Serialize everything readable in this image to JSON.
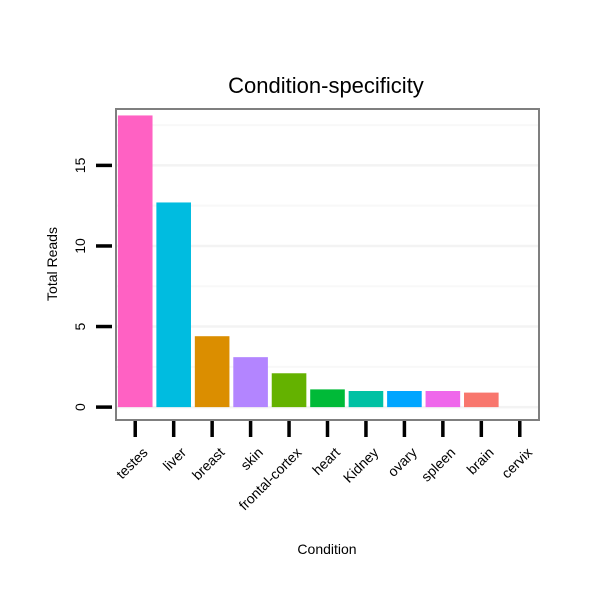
{
  "chart_data": {
    "type": "bar",
    "title": "Condition-specificity",
    "xlabel": "Condition",
    "ylabel": "Total Reads",
    "categories": [
      "testes",
      "liver",
      "breast",
      "skin",
      "frontal-cortex",
      "heart",
      "Kidney",
      "ovary",
      "spleen",
      "brain",
      "cervix"
    ],
    "values": [
      18.1,
      12.7,
      4.4,
      3.1,
      2.1,
      1.1,
      1.0,
      1.0,
      1.0,
      0.9,
      0
    ],
    "colors": [
      "#FF61C3",
      "#00BCE0",
      "#DB8E00",
      "#B385FF",
      "#64B200",
      "#00BA38",
      "#00C1A3",
      "#00A5FF",
      "#EF67EB",
      "#F8766D",
      "#AEA200"
    ],
    "yticks": [
      0,
      5,
      10,
      15
    ],
    "ylim": [
      -0.8,
      18.5
    ],
    "grid": true,
    "legend": "none"
  }
}
